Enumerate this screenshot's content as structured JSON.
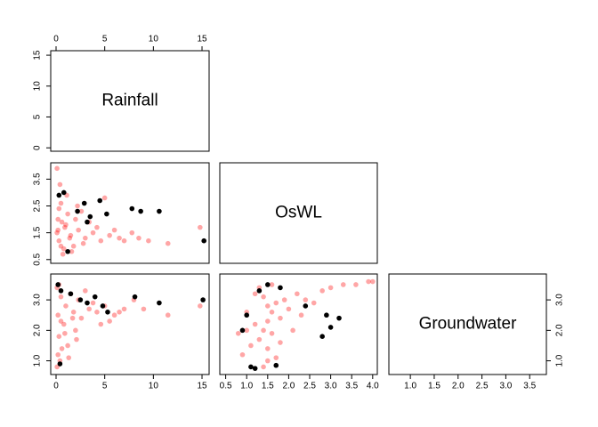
{
  "chart_data": {
    "type": "pairs",
    "variables": [
      {
        "name": "Rainfall",
        "lim": [
          -0.55,
          15.73
        ],
        "xticks": [
          0,
          5,
          10,
          15
        ],
        "yticks": [
          0,
          5,
          10,
          15
        ]
      },
      {
        "name": "OsWL",
        "lim": [
          0.36,
          4.11
        ],
        "xticks": [
          0.5,
          {
            "value": 1,
            "label": "1.0"
          },
          1.5,
          {
            "value": 2,
            "label": "2.0"
          },
          2.5,
          {
            "value": 3,
            "label": "3.0"
          },
          3.5,
          {
            "value": 4,
            "label": "4.0"
          }
        ],
        "yticks": [
          0.5,
          1.5,
          2.5,
          3.5
        ]
      },
      {
        "name": "Groundwater",
        "lim": [
          0.55,
          3.85
        ],
        "xticks": [
          {
            "value": 1,
            "label": "1.0"
          },
          1.5,
          {
            "value": 2,
            "label": "2.0"
          },
          2.5,
          {
            "value": 3,
            "label": "3.0"
          },
          3.5
        ],
        "yticks": [
          {
            "value": 1,
            "label": "1.0"
          },
          {
            "value": 2,
            "label": "2.0"
          },
          {
            "value": 3,
            "label": "3.0"
          }
        ]
      }
    ],
    "panels": [
      {
        "series": [
          {
            "color": "#ff0000",
            "opacity": 0.35,
            "x": [
              0.1,
              0.2,
              0.3,
              0.5,
              0.8,
              1,
              1.2,
              1.5,
              1.8,
              2,
              2.3,
              2.6,
              3,
              3.4,
              3.8,
              4.2,
              4.6,
              5,
              5.5,
              6,
              6.5,
              7,
              7.8,
              8.5,
              9.5,
              11.5,
              14.8,
              0.1,
              0.4,
              0.7,
              1.1,
              1.6,
              2.2,
              2.8,
              0.2,
              0.5,
              0.9,
              1.4,
              0.3,
              0.6
            ],
            "y": [
              1.5,
              2.0,
              1.2,
              2.6,
              0.9,
              1.8,
              2.2,
              1.4,
              1.0,
              2.0,
              1.6,
              2.3,
              1.3,
              1.9,
              1.5,
              1.7,
              1.2,
              2.8,
              1.4,
              1.6,
              1.3,
              1.2,
              1.5,
              1.3,
              1.2,
              1.1,
              1.7,
              3.9,
              3.3,
              0.7,
              2.9,
              0.8,
              2.5,
              1.1,
              1.6,
              1.0,
              1.7,
              1.3,
              2.4,
              1.9
            ]
          },
          {
            "color": "#000000",
            "opacity": 1,
            "x": [
              0.3,
              0.8,
              2.2,
              2.9,
              3.5,
              4.5,
              5.2,
              7.8,
              8.7,
              10.6,
              15.2,
              1.2,
              3.2
            ],
            "y": [
              2.9,
              3.0,
              2.3,
              2.6,
              2.1,
              2.7,
              2.2,
              2.4,
              2.3,
              2.3,
              1.2,
              0.8,
              1.9
            ]
          }
        ]
      },
      {
        "series": [
          {
            "color": "#ff0000",
            "opacity": 0.35,
            "x": [
              0.1,
              0.2,
              0.3,
              0.5,
              0.8,
              1,
              1.2,
              1.5,
              1.8,
              2,
              2.3,
              2.6,
              3,
              3.4,
              3.8,
              4.2,
              4.6,
              5,
              5.5,
              6,
              6.5,
              7,
              8,
              9,
              11.5,
              14.8,
              0.1,
              0.2,
              0.4,
              0.6,
              0.9,
              1.3,
              1.7,
              2.1,
              0.3,
              0.5
            ],
            "y": [
              3.4,
              2.5,
              1.8,
              3.1,
              2.2,
              2.8,
              1.5,
              3.2,
              2.6,
              2.0,
              3.0,
              2.4,
              3.3,
              2.7,
              2.9,
              2.6,
              2.2,
              2.8,
              2.3,
              2.5,
              2.6,
              2.7,
              3.0,
              2.7,
              2.5,
              2.8,
              0.8,
              1.2,
              1.0,
              1.4,
              1.9,
              1.1,
              2.4,
              1.7,
              3.5,
              2.3
            ]
          },
          {
            "color": "#000000",
            "opacity": 1,
            "x": [
              0.2,
              0.5,
              1.5,
              2.5,
              3.2,
              4.0,
              4.8,
              5.3,
              8.1,
              10.6,
              15.1,
              0.4
            ],
            "y": [
              3.5,
              3.3,
              3.2,
              3.0,
              2.9,
              3.1,
              2.8,
              2.6,
              3.1,
              2.9,
              3.0,
              0.9
            ]
          }
        ]
      },
      {
        "series": [
          {
            "color": "#ff0000",
            "opacity": 0.35,
            "x": [
              1.5,
              1.4,
              1.6,
              1.3,
              1.7,
              1.2,
              1.8,
              1.5,
              1.4,
              1.6,
              1.1,
              1.9,
              2.0,
              1.0,
              0.9,
              2.2,
              2.4,
              2.6,
              2.8,
              3.0,
              3.3,
              3.6,
              3.9,
              4.0,
              1.5,
              1.3,
              1.7,
              1.2,
              1.8,
              1.0,
              2.1,
              1.4,
              1.6,
              0.8,
              2.3,
              1.5
            ],
            "y": [
              2.3,
              2.0,
              2.6,
              1.7,
              2.9,
              2.2,
              2.4,
              1.4,
              3.1,
              1.9,
              1.5,
              3.0,
              2.7,
              2.6,
              1.2,
              3.2,
              3.0,
              2.9,
              3.3,
              3.4,
              3.5,
              3.5,
              3.6,
              3.6,
              1.0,
              3.4,
              1.1,
              3.2,
              1.6,
              2.0,
              2.0,
              0.8,
              3.5,
              1.9,
              2.5,
              2.8
            ]
          },
          {
            "color": "#000000",
            "opacity": 1,
            "x": [
              0.9,
              1.0,
              1.1,
              1.3,
              1.5,
              1.8,
              2.4,
              2.8,
              2.9,
              3.0,
              3.2,
              1.2,
              1.7
            ],
            "y": [
              2.0,
              2.5,
              0.8,
              3.3,
              3.5,
              3.4,
              2.8,
              1.8,
              2.5,
              2.1,
              2.4,
              0.75,
              0.85
            ]
          }
        ]
      }
    ]
  }
}
